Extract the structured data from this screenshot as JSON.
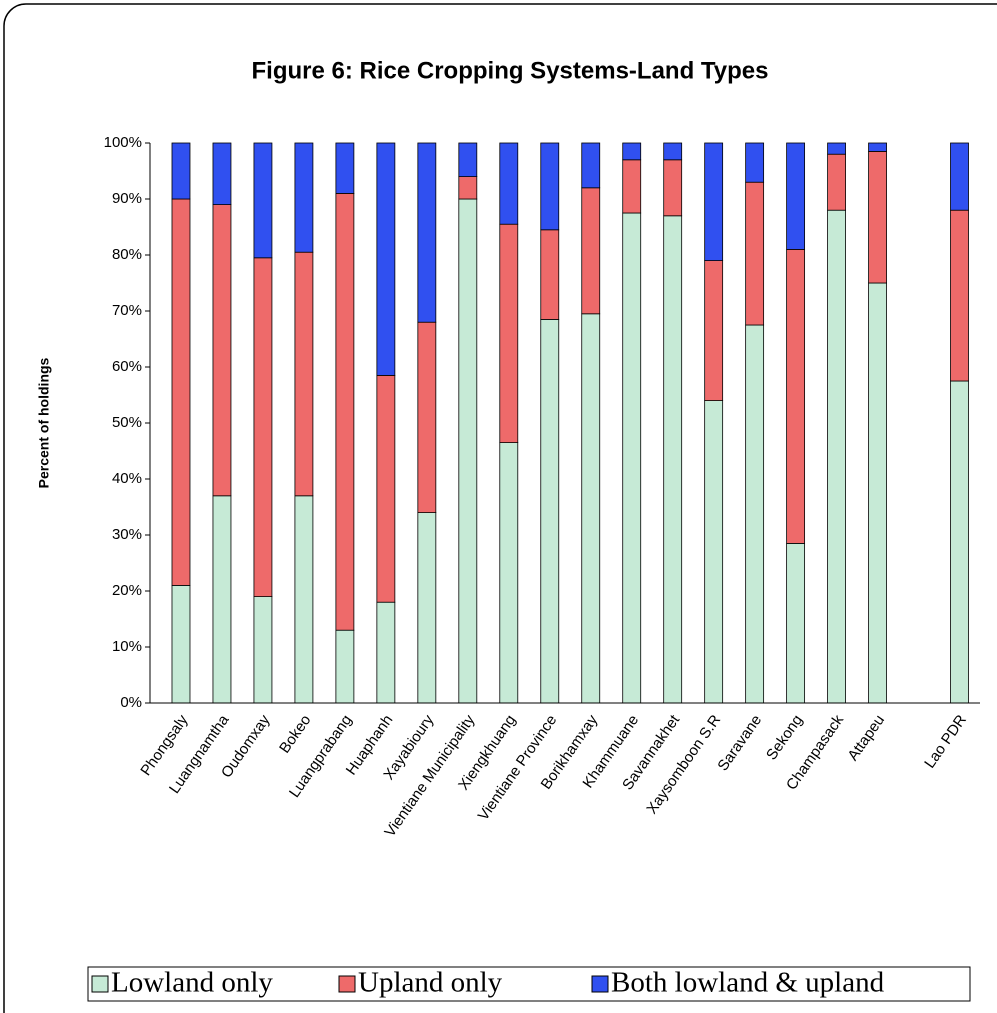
{
  "chart_data": {
    "type": "stacked_bar",
    "title": "Figure 6: Rice Cropping Systems-Land Types",
    "y_label": "Percent of holdings",
    "categories": [
      "Phongsaly",
      "Luangnamtha",
      "Oudomxay",
      "Bokeo",
      "Luangprabang",
      "Huaphanh",
      "Xayabioury",
      "Vientiane Municipality",
      "Xiengkhuang",
      "Vientiane Province",
      "Borikhamxay",
      "Khammuane",
      "Savannakhet",
      "Xaysomboon S.R",
      "Saravane",
      "Sekong",
      "Champasack",
      "Attapeu",
      null,
      "Lao PDR"
    ],
    "series": [
      {
        "name": "Lowland only",
        "color": "#c6ead6",
        "values": [
          21,
          37,
          19,
          37,
          13,
          18,
          34,
          90,
          46.5,
          68.5,
          69.5,
          87.5,
          87,
          54,
          67.5,
          28.5,
          88,
          75,
          null,
          57.5
        ]
      },
      {
        "name": "Upland only",
        "color": "#ee6a6a",
        "values": [
          69,
          52,
          60.5,
          43.5,
          78,
          40.5,
          34,
          4,
          39,
          16,
          22.5,
          9.5,
          10,
          25,
          25.5,
          52.5,
          10,
          23.5,
          null,
          30.5
        ]
      },
      {
        "name": "Both lowland & upland",
        "color": "#3050f0",
        "values": [
          10,
          11,
          20.5,
          19.5,
          9,
          41.5,
          32,
          6,
          14.5,
          15.5,
          8,
          3,
          3,
          21,
          7,
          19,
          2,
          1.5,
          null,
          12
        ]
      }
    ],
    "ylim": [
      0,
      100
    ],
    "yticks": [
      {
        "value": 0,
        "label": "0%"
      },
      {
        "value": 10,
        "label": "10%"
      },
      {
        "value": 20,
        "label": "20%"
      },
      {
        "value": 30,
        "label": "30%"
      },
      {
        "value": 40,
        "label": "40%"
      },
      {
        "value": 50,
        "label": "50%"
      },
      {
        "value": 60,
        "label": "60%"
      },
      {
        "value": 70,
        "label": "70%"
      },
      {
        "value": 80,
        "label": "80%"
      },
      {
        "value": 90,
        "label": "90%"
      },
      {
        "value": 100,
        "label": "100%"
      }
    ],
    "legend": "bottom"
  }
}
